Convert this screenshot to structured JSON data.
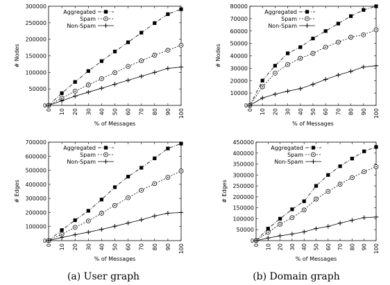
{
  "chart_data": [
    {
      "type": "line",
      "panel": "top-left",
      "xlabel": "% of Messages",
      "ylabel": "# Nodes",
      "x": [
        0,
        10,
        20,
        30,
        40,
        50,
        60,
        70,
        80,
        90,
        100
      ],
      "xlim": [
        0,
        100
      ],
      "ylim": [
        0,
        300000
      ],
      "yticks": [
        0,
        50000,
        100000,
        150000,
        200000,
        250000,
        300000
      ],
      "legend": "top-left",
      "series": [
        {
          "name": "Aggregated",
          "marker": "square",
          "dash": "5,2,1,2",
          "values": [
            0,
            37000,
            71000,
            104000,
            134000,
            163000,
            191000,
            220000,
            249000,
            276000,
            291000
          ]
        },
        {
          "name": "Spam",
          "marker": "circle-dot",
          "dash": "2,2",
          "values": [
            0,
            22000,
            43000,
            62000,
            81000,
            99000,
            118000,
            135000,
            152000,
            167000,
            182000
          ]
        },
        {
          "name": "Non-Spam",
          "marker": "plus",
          "dash": "",
          "values": [
            0,
            14000,
            28000,
            40000,
            52000,
            64000,
            76000,
            88000,
            100000,
            112000,
            116000
          ]
        }
      ]
    },
    {
      "type": "line",
      "panel": "top-right",
      "xlabel": "% of Messages",
      "ylabel": "# Nodes",
      "x": [
        0,
        10,
        20,
        30,
        40,
        50,
        60,
        70,
        80,
        90,
        100
      ],
      "xlim": [
        0,
        100
      ],
      "ylim": [
        0,
        80000
      ],
      "yticks": [
        0,
        10000,
        20000,
        30000,
        40000,
        50000,
        60000,
        70000,
        80000
      ],
      "legend": "top-left",
      "series": [
        {
          "name": "Aggregated",
          "marker": "square",
          "dash": "5,2,1,2",
          "values": [
            0,
            20000,
            32000,
            42000,
            47000,
            54000,
            60000,
            66000,
            72000,
            77000,
            80000
          ]
        },
        {
          "name": "Spam",
          "marker": "circle-dot",
          "dash": "2,2",
          "values": [
            0,
            15000,
            26000,
            33000,
            38000,
            42000,
            47000,
            51000,
            55000,
            57000,
            61000
          ]
        },
        {
          "name": "Non-Spam",
          "marker": "plus",
          "dash": "",
          "values": [
            0,
            6000,
            9000,
            11500,
            13500,
            17000,
            21000,
            24500,
            27500,
            31000,
            32000
          ]
        }
      ]
    },
    {
      "type": "line",
      "panel": "bottom-left",
      "xlabel": "% of Messages",
      "ylabel": "# Edges",
      "x": [
        0,
        10,
        20,
        30,
        40,
        50,
        60,
        70,
        80,
        90,
        100
      ],
      "xlim": [
        0,
        100
      ],
      "ylim": [
        0,
        700000
      ],
      "yticks": [
        0,
        100000,
        200000,
        300000,
        400000,
        500000,
        600000,
        700000
      ],
      "legend": "top-left",
      "series": [
        {
          "name": "Aggregated",
          "marker": "square",
          "dash": "5,2,1,2",
          "values": [
            0,
            75000,
            145000,
            212000,
            292000,
            380000,
            455000,
            518000,
            585000,
            655000,
            690000
          ]
        },
        {
          "name": "Spam",
          "marker": "circle-dot",
          "dash": "2,2",
          "values": [
            0,
            45000,
            95000,
            140000,
            195000,
            250000,
            305000,
            358000,
            405000,
            450000,
            495000
          ]
        },
        {
          "name": "Non-Spam",
          "marker": "plus",
          "dash": "",
          "values": [
            0,
            22000,
            42000,
            60000,
            80000,
            102000,
            125000,
            148000,
            175000,
            195000,
            200000
          ]
        }
      ]
    },
    {
      "type": "line",
      "panel": "bottom-right",
      "xlabel": "% of Messages",
      "ylabel": "# Edges",
      "x": [
        0,
        10,
        20,
        30,
        40,
        50,
        60,
        70,
        80,
        90,
        100
      ],
      "xlim": [
        0,
        100
      ],
      "ylim": [
        0,
        450000
      ],
      "yticks": [
        0,
        50000,
        100000,
        150000,
        200000,
        250000,
        300000,
        350000,
        400000,
        450000
      ],
      "legend": "top-left",
      "series": [
        {
          "name": "Aggregated",
          "marker": "square",
          "dash": "5,2,1,2",
          "values": [
            0,
            55000,
            100000,
            143000,
            180000,
            250000,
            300000,
            340000,
            375000,
            408000,
            428000
          ]
        },
        {
          "name": "Spam",
          "marker": "circle-dot",
          "dash": "2,2",
          "values": [
            0,
            38000,
            75000,
            105000,
            140000,
            190000,
            225000,
            258000,
            288000,
            315000,
            338000
          ]
        },
        {
          "name": "Non-Spam",
          "marker": "plus",
          "dash": "",
          "values": [
            0,
            12000,
            22000,
            30000,
            40000,
            55000,
            65000,
            80000,
            93000,
            105000,
            108000
          ]
        }
      ]
    }
  ],
  "captions": {
    "left": "(a) User graph",
    "right": "(b) Domain graph"
  }
}
